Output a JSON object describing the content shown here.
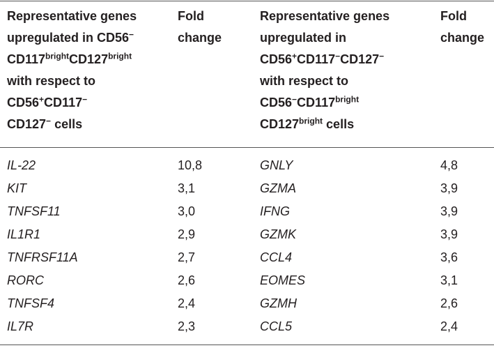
{
  "table": {
    "header": [
      [
        "Representative genes",
        "upregulated in CD56",
        "−",
        "CD117",
        "bright",
        "CD127",
        "bright",
        "with respect to",
        "CD56",
        "+",
        "CD117",
        "−",
        "CD127",
        "−",
        "cells"
      ],
      [
        "Fold",
        "change"
      ],
      [
        "Representative genes",
        "upregulated in",
        "CD56",
        "+",
        "CD117",
        "−",
        "CD127",
        "−",
        "with respect to",
        "CD56",
        "−",
        "CD117",
        "bright",
        "CD127",
        "bright",
        "cells"
      ],
      [
        "Fold",
        "change"
      ]
    ],
    "rows": [
      [
        "IL-22",
        "10,8",
        "GNLY",
        "4,8"
      ],
      [
        "KIT",
        "3,1",
        "GZMA",
        "3,9"
      ],
      [
        "TNFSF11",
        "3,0",
        "IFNG",
        "3,9"
      ],
      [
        "IL1R1",
        "2,9",
        "GZMK",
        "3,9"
      ],
      [
        "TNFRSF11A",
        "2,7",
        "CCL4",
        "3,6"
      ],
      [
        "RORC",
        "2,6",
        "EOMES",
        "3,1"
      ],
      [
        "TNFSF4",
        "2,4",
        "GZMH",
        "2,6"
      ],
      [
        "IL7R",
        "2,3",
        "CCL5",
        "2,4"
      ]
    ]
  }
}
